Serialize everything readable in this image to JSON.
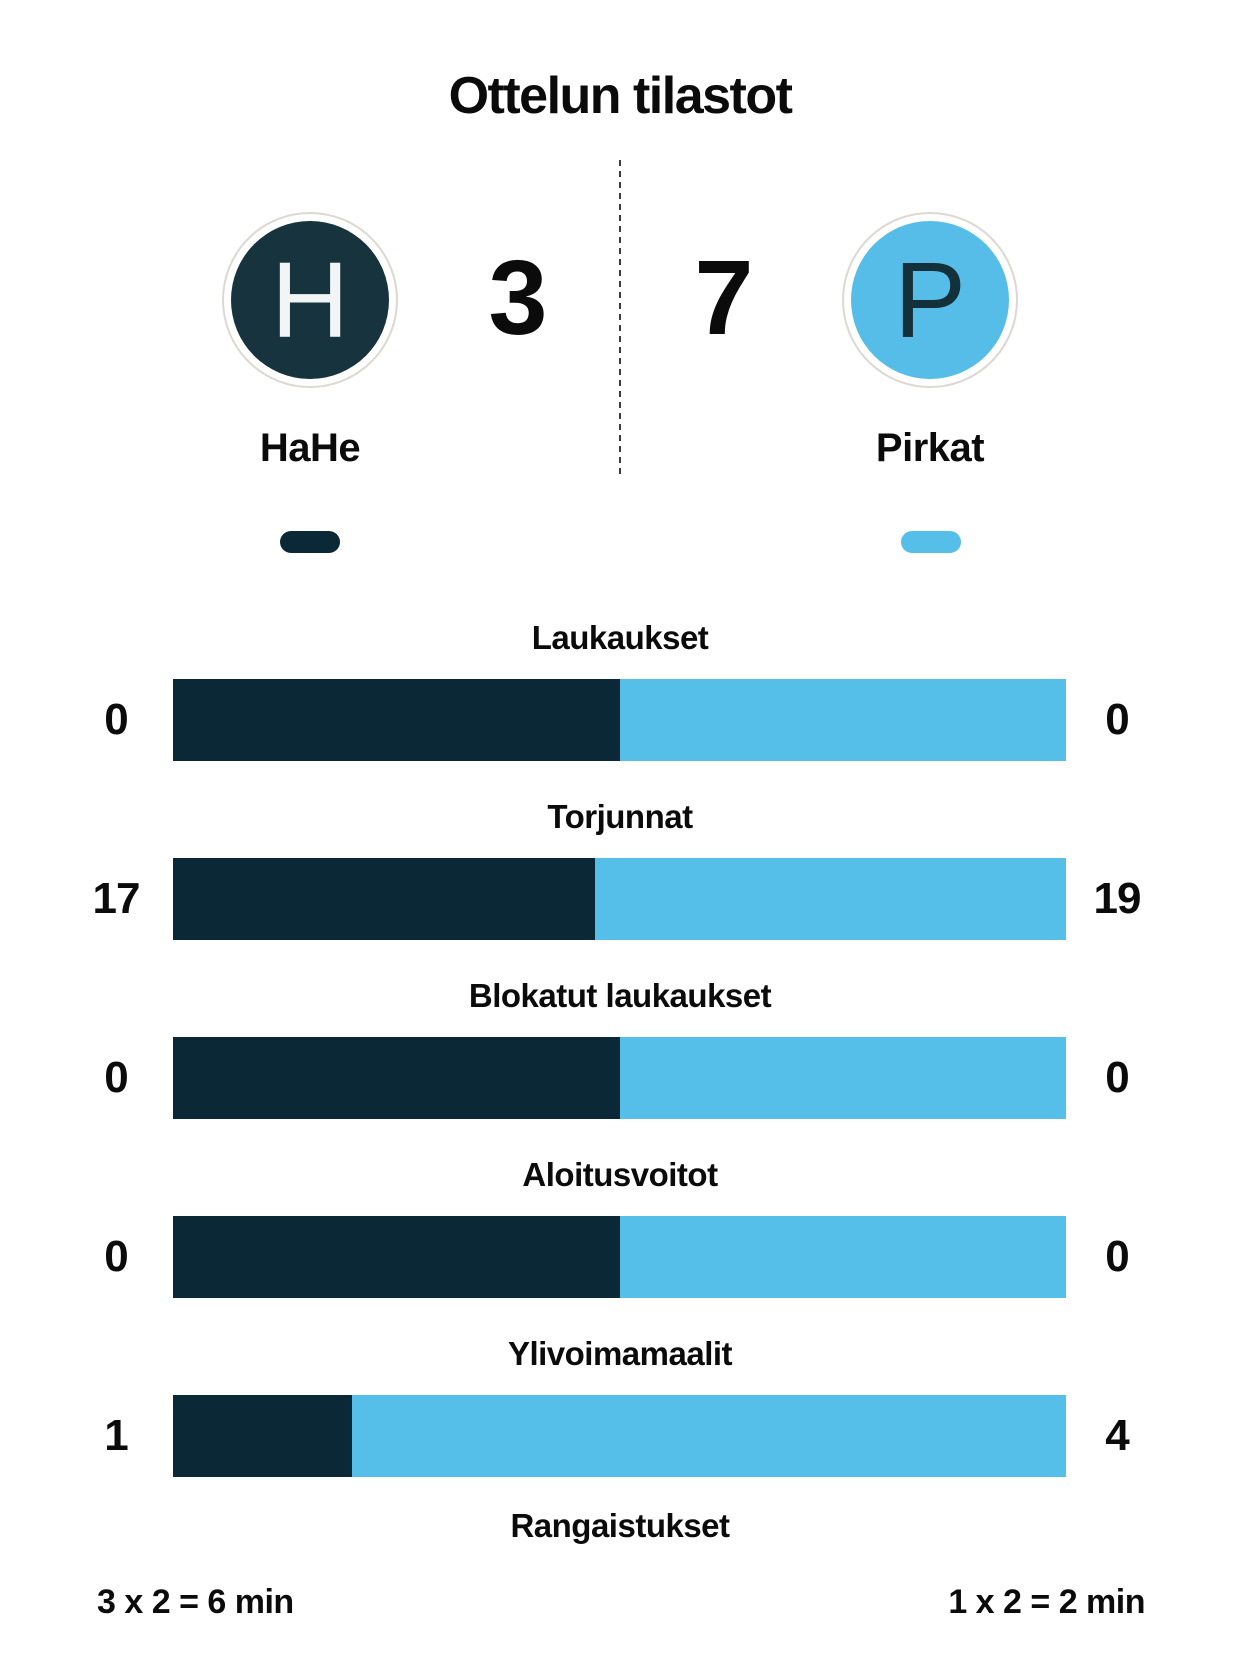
{
  "title": "Ottelun tilastot",
  "scoreboard": {
    "home": {
      "name": "HaHe",
      "initial": "H",
      "score": "3"
    },
    "away": {
      "name": "Pirkat",
      "initial": "P",
      "score": "7"
    }
  },
  "colors": {
    "home": "#0b2836",
    "away": "#55bfe9",
    "home_circle": "#16333e",
    "away_circle": "#55bde8",
    "home_letter": "#f2f5f5",
    "away_letter": "#14303a",
    "ring": "#ddd8d2",
    "text": "#0b0b0b"
  },
  "chart_data": {
    "type": "bar",
    "title": "Ottelun tilastot",
    "orientation": "horizontal-split",
    "categories": [
      "Laukaukset",
      "Torjunnat",
      "Blokatut laukaukset",
      "Aloitusvoitot",
      "Ylivoimamaalit"
    ],
    "series": [
      {
        "name": "HaHe",
        "values": [
          0,
          17,
          0,
          0,
          1
        ]
      },
      {
        "name": "Pirkat",
        "values": [
          0,
          19,
          0,
          0,
          4
        ]
      }
    ],
    "split_rule": "home segment width = home/(home+away) of bar; 50/50 when total is 0",
    "legend_position": "under team names as color pills"
  },
  "penalties": {
    "label": "Rangaistukset",
    "home": "3 x 2 = 6 min",
    "away": "1 x 2 = 2 min"
  }
}
